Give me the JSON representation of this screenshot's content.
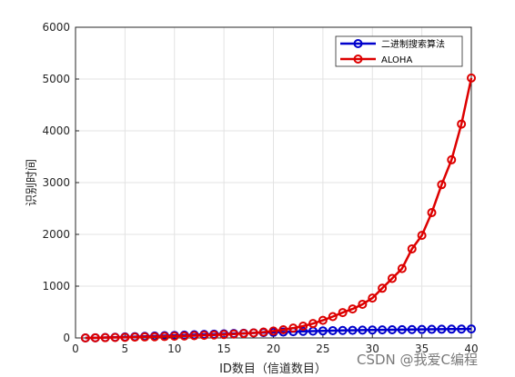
{
  "chart_data": {
    "type": "line",
    "xlabel": "ID数目（信道数目）",
    "ylabel": "识别时间",
    "xlim": [
      0,
      40
    ],
    "ylim": [
      0,
      6000
    ],
    "xticks": [
      0,
      5,
      10,
      15,
      20,
      25,
      30,
      35,
      40
    ],
    "yticks": [
      0,
      1000,
      2000,
      3000,
      4000,
      5000,
      6000
    ],
    "grid": true,
    "legend_position": "top-right",
    "x": [
      1,
      2,
      3,
      4,
      5,
      6,
      7,
      8,
      9,
      10,
      11,
      12,
      13,
      14,
      15,
      16,
      17,
      18,
      19,
      20,
      21,
      22,
      23,
      24,
      25,
      26,
      27,
      28,
      29,
      30,
      31,
      32,
      33,
      34,
      35,
      36,
      37,
      38,
      39,
      40
    ],
    "series": [
      {
        "name": "二进制搜索算法",
        "color": "#0000cc",
        "marker": "circle",
        "values": [
          0,
          3,
          8,
          13,
          19,
          25,
          31,
          37,
          43,
          49,
          55,
          61,
          67,
          73,
          79,
          85,
          91,
          97,
          103,
          109,
          115,
          121,
          127,
          132,
          137,
          141,
          145,
          148,
          151,
          154,
          156,
          158,
          160,
          162,
          164,
          166,
          168,
          170,
          172,
          174
        ]
      },
      {
        "name": "ALOHA",
        "color": "#dd0000",
        "marker": "circle",
        "values": [
          0,
          3,
          6,
          9,
          12,
          15,
          19,
          23,
          28,
          33,
          38,
          44,
          51,
          58,
          66,
          75,
          85,
          97,
          113,
          133,
          158,
          190,
          228,
          278,
          340,
          412,
          490,
          560,
          650,
          770,
          960,
          1150,
          1340,
          1720,
          1980,
          2420,
          2960,
          3440,
          4130,
          5020
        ]
      }
    ]
  },
  "watermark": "CSDN @我爱C编程"
}
